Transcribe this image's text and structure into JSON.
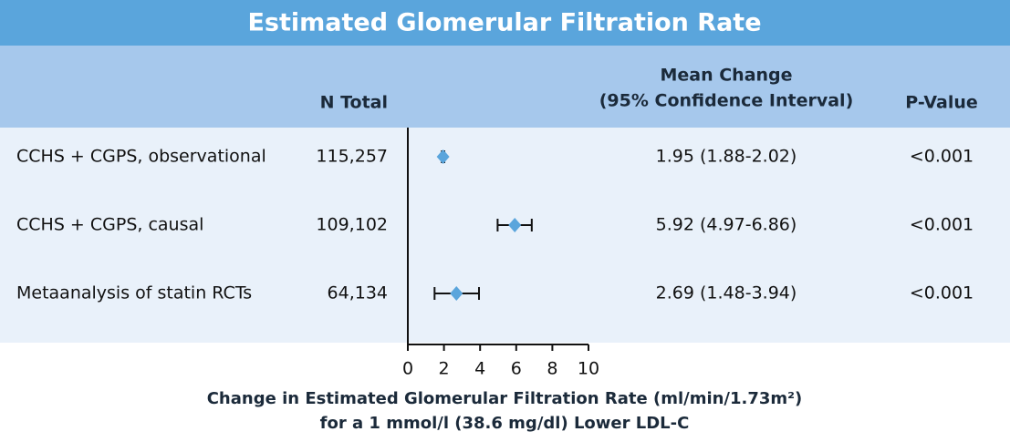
{
  "chart_data": {
    "type": "forest",
    "title": "Estimated Glomerular Filtration Rate",
    "n_header": "N Total",
    "estimate_header": [
      "Mean Change",
      "(95% Confidence Interval)"
    ],
    "p_header": "P-Value",
    "categories": [
      "CCHS + CGPS, observational",
      "CCHS + CGPS, causal",
      "Metaanalysis of statin RCTs"
    ],
    "n_total": [
      "115,257",
      "109,102",
      "64,134"
    ],
    "values": [
      1.95,
      5.92,
      2.69
    ],
    "lower": [
      1.88,
      4.97,
      1.48
    ],
    "upper": [
      2.02,
      6.86,
      3.94
    ],
    "value_labels": [
      "1.95 (1.88-2.02)",
      "5.92 (4.97-6.86)",
      "2.69 (1.48-3.94)"
    ],
    "p_values": [
      "<0.001",
      "<0.001",
      "<0.001"
    ],
    "color": "#5aa5dc",
    "xlim": [
      0,
      10
    ],
    "xticks": [
      0,
      2,
      4,
      6,
      8,
      10
    ],
    "xlabel": [
      "Change in Estimated Glomerular Filtration Rate (ml/min/1.73m²)",
      "for a 1 mmol/l (38.6 mg/dl) Lower LDL-C"
    ]
  }
}
